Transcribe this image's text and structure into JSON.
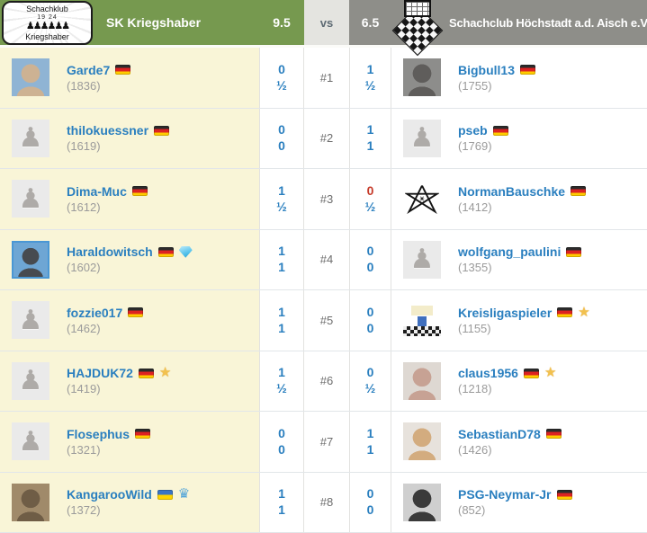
{
  "header": {
    "team1": {
      "name": "SK Kriegshaber",
      "score": "9.5",
      "logo": {
        "line_top": "Schachklub",
        "line_bottom": "Kriegshaber",
        "year": "19 24",
        "pawns": "♟♟♟♟♟♟"
      }
    },
    "vs_label": "vs",
    "team2": {
      "name": "Schachclub Höchstadt a.d. Aisch e.V.",
      "score": "6.5"
    }
  },
  "colors": {
    "score_blue": "#2a7fbf",
    "score_red": "#c63b2a",
    "link_blue": "#2a7fbf",
    "team1_green": "#76994f",
    "team2_gray": "#8e8e89",
    "row_yellow": "#f9f5d7"
  },
  "matches": [
    {
      "board": "#1",
      "left": {
        "username": "Garde7",
        "rating": "(1836)",
        "flag": "de",
        "badges": [],
        "avatar": {
          "kind": "photo",
          "colors": [
            "#8fb4d4",
            "#cdb293"
          ]
        },
        "results": [
          {
            "text": "0",
            "color": "blue"
          },
          {
            "text": "½",
            "color": "blue"
          }
        ]
      },
      "right": {
        "username": "Bigbull13",
        "rating": "(1755)",
        "flag": "de",
        "badges": [],
        "avatar": {
          "kind": "photo",
          "colors": [
            "#8d8d8b",
            "#5f5d5b"
          ]
        },
        "results": [
          {
            "text": "1",
            "color": "blue"
          },
          {
            "text": "½",
            "color": "blue"
          }
        ]
      }
    },
    {
      "board": "#2",
      "left": {
        "username": "thilokuessner",
        "rating": "(1619)",
        "flag": "de",
        "badges": [],
        "avatar": {
          "kind": "pawn"
        },
        "results": [
          {
            "text": "0",
            "color": "blue"
          },
          {
            "text": "0",
            "color": "blue"
          }
        ]
      },
      "right": {
        "username": "pseb",
        "rating": "(1769)",
        "flag": "de",
        "badges": [],
        "avatar": {
          "kind": "pawn"
        },
        "results": [
          {
            "text": "1",
            "color": "blue"
          },
          {
            "text": "1",
            "color": "blue"
          }
        ]
      }
    },
    {
      "board": "#3",
      "left": {
        "username": "Dima-Muc",
        "rating": "(1612)",
        "flag": "de",
        "badges": [],
        "avatar": {
          "kind": "pawn"
        },
        "results": [
          {
            "text": "1",
            "color": "blue"
          },
          {
            "text": "½",
            "color": "blue"
          }
        ]
      },
      "right": {
        "username": "NormanBauschke",
        "rating": "(1412)",
        "flag": "de",
        "badges": [],
        "avatar": {
          "kind": "hexagram"
        },
        "results": [
          {
            "text": "0",
            "color": "red"
          },
          {
            "text": "½",
            "color": "blue"
          }
        ]
      }
    },
    {
      "board": "#4",
      "left": {
        "username": "Haraldowitsch",
        "rating": "(1602)",
        "flag": "de",
        "badges": [
          "diamond"
        ],
        "avatar": {
          "kind": "photo",
          "colors": [
            "#6ea6d4",
            "#474b50"
          ],
          "border": "#4a97d4"
        },
        "results": [
          {
            "text": "1",
            "color": "blue"
          },
          {
            "text": "1",
            "color": "blue"
          }
        ]
      },
      "right": {
        "username": "wolfgang_paulini",
        "rating": "(1355)",
        "flag": "de",
        "badges": [],
        "avatar": {
          "kind": "pawn"
        },
        "results": [
          {
            "text": "0",
            "color": "blue"
          },
          {
            "text": "0",
            "color": "blue"
          }
        ]
      }
    },
    {
      "board": "#5",
      "left": {
        "username": "fozzie017",
        "rating": "(1462)",
        "flag": "de",
        "badges": [],
        "avatar": {
          "kind": "pawn"
        },
        "results": [
          {
            "text": "1",
            "color": "blue"
          },
          {
            "text": "1",
            "color": "blue"
          }
        ]
      },
      "right": {
        "username": "Kreisligaspieler",
        "rating": "(1155)",
        "flag": "de",
        "badges": [
          "star"
        ],
        "avatar": {
          "kind": "cartoon"
        },
        "results": [
          {
            "text": "0",
            "color": "blue"
          },
          {
            "text": "0",
            "color": "blue"
          }
        ]
      }
    },
    {
      "board": "#6",
      "left": {
        "username": "HAJDUK72",
        "rating": "(1419)",
        "flag": "de",
        "badges": [
          "star"
        ],
        "avatar": {
          "kind": "pawn"
        },
        "results": [
          {
            "text": "1",
            "color": "blue"
          },
          {
            "text": "½",
            "color": "blue"
          }
        ]
      },
      "right": {
        "username": "claus1956",
        "rating": "(1218)",
        "flag": "de",
        "badges": [
          "star"
        ],
        "avatar": {
          "kind": "photo",
          "colors": [
            "#ded8d2",
            "#c7a294"
          ]
        },
        "results": [
          {
            "text": "0",
            "color": "blue"
          },
          {
            "text": "½",
            "color": "blue"
          }
        ]
      }
    },
    {
      "board": "#7",
      "left": {
        "username": "Flosephus",
        "rating": "(1321)",
        "flag": "de",
        "badges": [],
        "avatar": {
          "kind": "pawn"
        },
        "results": [
          {
            "text": "0",
            "color": "blue"
          },
          {
            "text": "0",
            "color": "blue"
          }
        ]
      },
      "right": {
        "username": "SebastianD78",
        "rating": "(1426)",
        "flag": "de",
        "badges": [],
        "avatar": {
          "kind": "photo",
          "colors": [
            "#e7e2dc",
            "#d3ac7f"
          ]
        },
        "results": [
          {
            "text": "1",
            "color": "blue"
          },
          {
            "text": "1",
            "color": "blue"
          }
        ]
      }
    },
    {
      "board": "#8",
      "left": {
        "username": "KangarooWild",
        "rating": "(1372)",
        "flag": "ua",
        "badges": [
          "crown"
        ],
        "avatar": {
          "kind": "photo",
          "colors": [
            "#a08a6a",
            "#6f5d46"
          ]
        },
        "results": [
          {
            "text": "1",
            "color": "blue"
          },
          {
            "text": "1",
            "color": "blue"
          }
        ]
      },
      "right": {
        "username": "PSG-Neymar-Jr",
        "rating": "(852)",
        "flag": "de",
        "badges": [],
        "avatar": {
          "kind": "photo",
          "colors": [
            "#cfcfcf",
            "#3a3a3a"
          ]
        },
        "results": [
          {
            "text": "0",
            "color": "blue"
          },
          {
            "text": "0",
            "color": "blue"
          }
        ]
      }
    }
  ]
}
